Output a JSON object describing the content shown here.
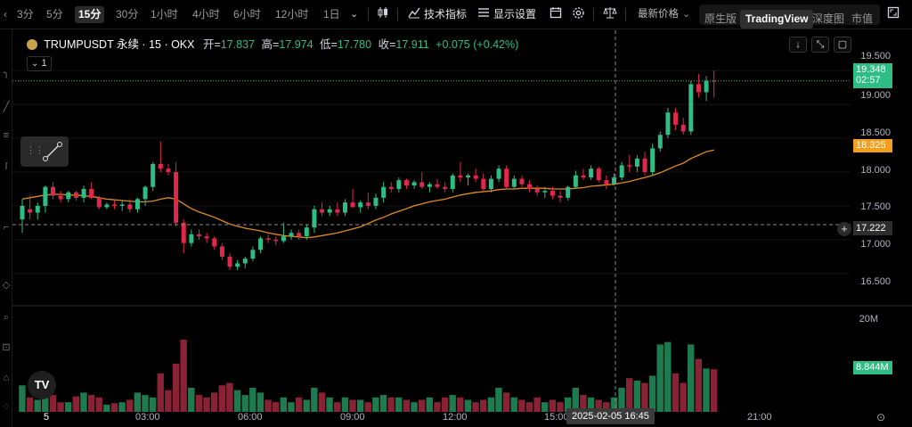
{
  "toolbar": {
    "intervals": [
      "3分",
      "5分",
      "15分",
      "30分",
      "1小时",
      "4小时",
      "6小时",
      "12小时",
      "1日"
    ],
    "active_interval": "15分",
    "indicators_label": "技术指标",
    "display_settings_label": "显示设置",
    "price_type_label": "最新价格",
    "view_modes": [
      "原生版",
      "TradingView",
      "深度图",
      "市值"
    ],
    "active_view_mode": "TradingView"
  },
  "legend": {
    "symbol": "TRUMPUSDT 永续 · 15 · OKX",
    "open_label": "开=",
    "open": "17.837",
    "high_label": "高=",
    "high": "17.974",
    "low_label": "低=",
    "low": "17.780",
    "close_label": "收=",
    "close": "17.911",
    "change": "+0.075 (+0.42%)"
  },
  "indicator_badge": "1",
  "price_axis": {
    "labels": [
      "19.500",
      "19.000",
      "18.500",
      "18.000",
      "17.500",
      "17.000",
      "16.500"
    ],
    "current_price": "19.348",
    "countdown": "02:57",
    "ma_value": "18.325",
    "crosshair_price": "17.222"
  },
  "volume_axis": {
    "label": "20M",
    "current_volume": "8.844M"
  },
  "time_axis": {
    "labels": [
      "5",
      "03:00",
      "06:00",
      "09:00",
      "12:00",
      "15:00",
      "21:00"
    ],
    "crosshair_time": "2025-02-05   16:45"
  },
  "colors": {
    "up": "#2ebd85",
    "down": "#e0294a",
    "up_volume": "#1e7a4f",
    "down_volume": "#8a2236",
    "ma": "#e08a1e",
    "ma_tag": "#f29f1f"
  },
  "chart_data": {
    "type": "candlestick",
    "interval": "15m",
    "ylim": [
      16.3,
      19.7
    ],
    "volume_ylim": [
      0,
      20
    ],
    "candles": [
      {
        "o": 17.3,
        "h": 17.6,
        "l": 17.1,
        "c": 17.5,
        "v": 5.5
      },
      {
        "o": 17.45,
        "h": 17.65,
        "l": 17.3,
        "c": 17.4,
        "v": 3.0
      },
      {
        "o": 17.4,
        "h": 17.55,
        "l": 17.3,
        "c": 17.5,
        "v": 2.5
      },
      {
        "o": 17.5,
        "h": 17.8,
        "l": 17.4,
        "c": 17.78,
        "v": 4.0
      },
      {
        "o": 17.78,
        "h": 17.85,
        "l": 17.6,
        "c": 17.65,
        "v": 3.5
      },
      {
        "o": 17.65,
        "h": 17.72,
        "l": 17.55,
        "c": 17.6,
        "v": 2.0
      },
      {
        "o": 17.6,
        "h": 17.72,
        "l": 17.55,
        "c": 17.7,
        "v": 2.0
      },
      {
        "o": 17.7,
        "h": 17.72,
        "l": 17.58,
        "c": 17.62,
        "v": 3.2
      },
      {
        "o": 17.62,
        "h": 17.8,
        "l": 17.55,
        "c": 17.75,
        "v": 4.0
      },
      {
        "o": 17.75,
        "h": 17.85,
        "l": 17.6,
        "c": 17.62,
        "v": 3.5
      },
      {
        "o": 17.62,
        "h": 17.65,
        "l": 17.45,
        "c": 17.48,
        "v": 3.0
      },
      {
        "o": 17.48,
        "h": 17.55,
        "l": 17.45,
        "c": 17.52,
        "v": 1.5
      },
      {
        "o": 17.52,
        "h": 17.58,
        "l": 17.45,
        "c": 17.5,
        "v": 1.8
      },
      {
        "o": 17.5,
        "h": 17.58,
        "l": 17.42,
        "c": 17.52,
        "v": 2.0
      },
      {
        "o": 17.52,
        "h": 17.6,
        "l": 17.4,
        "c": 17.45,
        "v": 2.5
      },
      {
        "o": 17.45,
        "h": 17.62,
        "l": 17.4,
        "c": 17.6,
        "v": 4.0
      },
      {
        "o": 17.6,
        "h": 17.8,
        "l": 17.5,
        "c": 17.78,
        "v": 3.5
      },
      {
        "o": 17.78,
        "h": 18.15,
        "l": 17.72,
        "c": 18.12,
        "v": 3.0
      },
      {
        "o": 18.12,
        "h": 18.45,
        "l": 18.0,
        "c": 18.05,
        "v": 8.0
      },
      {
        "o": 18.05,
        "h": 18.12,
        "l": 17.95,
        "c": 18.0,
        "v": 4.5
      },
      {
        "o": 18.0,
        "h": 18.15,
        "l": 17.2,
        "c": 17.25,
        "v": 10.0
      },
      {
        "o": 17.25,
        "h": 17.3,
        "l": 16.8,
        "c": 16.95,
        "v": 15.0
      },
      {
        "o": 16.95,
        "h": 17.15,
        "l": 16.9,
        "c": 17.08,
        "v": 5.0
      },
      {
        "o": 17.08,
        "h": 17.15,
        "l": 17.0,
        "c": 17.05,
        "v": 3.5
      },
      {
        "o": 17.05,
        "h": 17.1,
        "l": 16.95,
        "c": 17.02,
        "v": 3.0
      },
      {
        "o": 17.02,
        "h": 17.05,
        "l": 16.85,
        "c": 16.9,
        "v": 4.0
      },
      {
        "o": 16.9,
        "h": 16.95,
        "l": 16.7,
        "c": 16.75,
        "v": 5.5
      },
      {
        "o": 16.75,
        "h": 16.8,
        "l": 16.55,
        "c": 16.6,
        "v": 6.0
      },
      {
        "o": 16.6,
        "h": 16.7,
        "l": 16.55,
        "c": 16.65,
        "v": 4.5
      },
      {
        "o": 16.65,
        "h": 16.75,
        "l": 16.58,
        "c": 16.72,
        "v": 3.5
      },
      {
        "o": 16.72,
        "h": 16.9,
        "l": 16.68,
        "c": 16.85,
        "v": 5.0
      },
      {
        "o": 16.85,
        "h": 17.05,
        "l": 16.8,
        "c": 17.02,
        "v": 4.0
      },
      {
        "o": 17.02,
        "h": 17.08,
        "l": 16.95,
        "c": 17.0,
        "v": 2.5
      },
      {
        "o": 17.0,
        "h": 17.05,
        "l": 16.92,
        "c": 16.98,
        "v": 2.0
      },
      {
        "o": 16.98,
        "h": 17.25,
        "l": 16.95,
        "c": 17.05,
        "v": 3.0
      },
      {
        "o": 17.05,
        "h": 17.15,
        "l": 17.0,
        "c": 17.1,
        "v": 2.0
      },
      {
        "o": 17.1,
        "h": 17.15,
        "l": 17.0,
        "c": 17.05,
        "v": 3.0
      },
      {
        "o": 17.05,
        "h": 17.22,
        "l": 17.0,
        "c": 17.18,
        "v": 2.5
      },
      {
        "o": 17.18,
        "h": 17.5,
        "l": 17.1,
        "c": 17.45,
        "v": 5.0
      },
      {
        "o": 17.45,
        "h": 17.55,
        "l": 17.35,
        "c": 17.4,
        "v": 4.0
      },
      {
        "o": 17.4,
        "h": 17.5,
        "l": 17.35,
        "c": 17.45,
        "v": 3.0
      },
      {
        "o": 17.45,
        "h": 17.55,
        "l": 17.35,
        "c": 17.4,
        "v": 2.0
      },
      {
        "o": 17.4,
        "h": 17.6,
        "l": 17.35,
        "c": 17.55,
        "v": 3.0
      },
      {
        "o": 17.55,
        "h": 17.75,
        "l": 17.5,
        "c": 17.48,
        "v": 2.5
      },
      {
        "o": 17.48,
        "h": 17.58,
        "l": 17.4,
        "c": 17.55,
        "v": 2.5
      },
      {
        "o": 17.55,
        "h": 17.7,
        "l": 17.45,
        "c": 17.5,
        "v": 2.0
      },
      {
        "o": 17.5,
        "h": 17.68,
        "l": 17.45,
        "c": 17.62,
        "v": 3.0
      },
      {
        "o": 17.62,
        "h": 17.85,
        "l": 17.55,
        "c": 17.78,
        "v": 3.5
      },
      {
        "o": 17.78,
        "h": 17.85,
        "l": 17.7,
        "c": 17.75,
        "v": 3.0
      },
      {
        "o": 17.75,
        "h": 17.92,
        "l": 17.7,
        "c": 17.88,
        "v": 3.0
      },
      {
        "o": 17.88,
        "h": 17.9,
        "l": 17.75,
        "c": 17.8,
        "v": 2.5
      },
      {
        "o": 17.8,
        "h": 17.88,
        "l": 17.75,
        "c": 17.85,
        "v": 2.0
      },
      {
        "o": 17.85,
        "h": 18.0,
        "l": 17.75,
        "c": 17.78,
        "v": 2.5
      },
      {
        "o": 17.78,
        "h": 17.85,
        "l": 17.7,
        "c": 17.82,
        "v": 3.0
      },
      {
        "o": 17.82,
        "h": 17.9,
        "l": 17.75,
        "c": 17.78,
        "v": 2.0
      },
      {
        "o": 17.78,
        "h": 17.85,
        "l": 17.7,
        "c": 17.75,
        "v": 3.0
      },
      {
        "o": 17.75,
        "h": 17.98,
        "l": 17.7,
        "c": 17.95,
        "v": 3.5
      },
      {
        "o": 17.95,
        "h": 18.15,
        "l": 17.85,
        "c": 17.92,
        "v": 3.0
      },
      {
        "o": 17.92,
        "h": 17.98,
        "l": 17.8,
        "c": 17.95,
        "v": 2.5
      },
      {
        "o": 17.95,
        "h": 18.05,
        "l": 17.85,
        "c": 17.9,
        "v": 2.0
      },
      {
        "o": 17.9,
        "h": 17.98,
        "l": 17.72,
        "c": 17.75,
        "v": 2.5
      },
      {
        "o": 17.75,
        "h": 17.95,
        "l": 17.7,
        "c": 17.9,
        "v": 3.0
      },
      {
        "o": 17.9,
        "h": 18.1,
        "l": 17.85,
        "c": 18.05,
        "v": 5.0
      },
      {
        "o": 18.05,
        "h": 18.1,
        "l": 17.75,
        "c": 17.78,
        "v": 4.0
      },
      {
        "o": 17.78,
        "h": 17.95,
        "l": 17.75,
        "c": 17.9,
        "v": 3.0
      },
      {
        "o": 17.9,
        "h": 17.95,
        "l": 17.78,
        "c": 17.82,
        "v": 2.5
      },
      {
        "o": 17.82,
        "h": 17.88,
        "l": 17.7,
        "c": 17.75,
        "v": 2.0
      },
      {
        "o": 17.75,
        "h": 17.8,
        "l": 17.65,
        "c": 17.7,
        "v": 3.0
      },
      {
        "o": 17.7,
        "h": 17.78,
        "l": 17.62,
        "c": 17.72,
        "v": 2.0
      },
      {
        "o": 17.72,
        "h": 17.78,
        "l": 17.6,
        "c": 17.65,
        "v": 2.5
      },
      {
        "o": 17.65,
        "h": 17.72,
        "l": 17.55,
        "c": 17.62,
        "v": 2.0
      },
      {
        "o": 17.62,
        "h": 17.8,
        "l": 17.58,
        "c": 17.78,
        "v": 3.0
      },
      {
        "o": 17.78,
        "h": 18.02,
        "l": 17.75,
        "c": 17.95,
        "v": 5.0
      },
      {
        "o": 17.95,
        "h": 18.05,
        "l": 17.88,
        "c": 17.92,
        "v": 3.5
      },
      {
        "o": 17.92,
        "h": 18.1,
        "l": 17.88,
        "c": 18.05,
        "v": 3.0
      },
      {
        "o": 18.05,
        "h": 18.08,
        "l": 17.85,
        "c": 17.88,
        "v": 2.5
      },
      {
        "o": 17.88,
        "h": 17.95,
        "l": 17.75,
        "c": 17.82,
        "v": 2.0
      },
      {
        "o": 17.82,
        "h": 17.98,
        "l": 17.8,
        "c": 17.92,
        "v": 3.0
      },
      {
        "o": 17.92,
        "h": 18.15,
        "l": 17.88,
        "c": 18.1,
        "v": 5.0
      },
      {
        "o": 18.1,
        "h": 18.25,
        "l": 18.0,
        "c": 18.08,
        "v": 7.0
      },
      {
        "o": 18.08,
        "h": 18.25,
        "l": 18.0,
        "c": 18.2,
        "v": 6.5
      },
      {
        "o": 18.2,
        "h": 18.3,
        "l": 17.95,
        "c": 18.0,
        "v": 6.0
      },
      {
        "o": 18.0,
        "h": 18.42,
        "l": 17.95,
        "c": 18.35,
        "v": 7.5
      },
      {
        "o": 18.35,
        "h": 18.6,
        "l": 18.3,
        "c": 18.55,
        "v": 14.0
      },
      {
        "o": 18.55,
        "h": 18.95,
        "l": 18.5,
        "c": 18.88,
        "v": 14.5
      },
      {
        "o": 18.88,
        "h": 18.95,
        "l": 18.62,
        "c": 18.7,
        "v": 8.0
      },
      {
        "o": 18.7,
        "h": 18.8,
        "l": 18.55,
        "c": 18.6,
        "v": 6.0
      },
      {
        "o": 18.6,
        "h": 19.35,
        "l": 18.55,
        "c": 19.3,
        "v": 14.0
      },
      {
        "o": 19.3,
        "h": 19.45,
        "l": 19.1,
        "c": 19.18,
        "v": 11.0
      },
      {
        "o": 19.18,
        "h": 19.42,
        "l": 19.05,
        "c": 19.35,
        "v": 9.0
      },
      {
        "o": 19.35,
        "h": 19.5,
        "l": 19.1,
        "c": 19.348,
        "v": 8.844
      }
    ],
    "ma": [
      17.6,
      17.62,
      17.64,
      17.66,
      17.67,
      17.67,
      17.66,
      17.66,
      17.65,
      17.64,
      17.62,
      17.6,
      17.59,
      17.58,
      17.57,
      17.56,
      17.56,
      17.57,
      17.6,
      17.62,
      17.6,
      17.53,
      17.46,
      17.41,
      17.37,
      17.33,
      17.28,
      17.23,
      17.2,
      17.17,
      17.15,
      17.13,
      17.1,
      17.08,
      17.06,
      17.05,
      17.04,
      17.03,
      17.04,
      17.06,
      17.08,
      17.1,
      17.13,
      17.16,
      17.19,
      17.24,
      17.29,
      17.33,
      17.38,
      17.42,
      17.46,
      17.5,
      17.53,
      17.56,
      17.58,
      17.6,
      17.63,
      17.66,
      17.68,
      17.7,
      17.71,
      17.72,
      17.74,
      17.75,
      17.75,
      17.76,
      17.76,
      17.76,
      17.76,
      17.75,
      17.75,
      17.75,
      17.76,
      17.77,
      17.79,
      17.8,
      17.81,
      17.82,
      17.84,
      17.86,
      17.89,
      17.92,
      17.95,
      17.99,
      18.04,
      18.09,
      18.13,
      18.2,
      18.25,
      18.3,
      18.325
    ]
  }
}
